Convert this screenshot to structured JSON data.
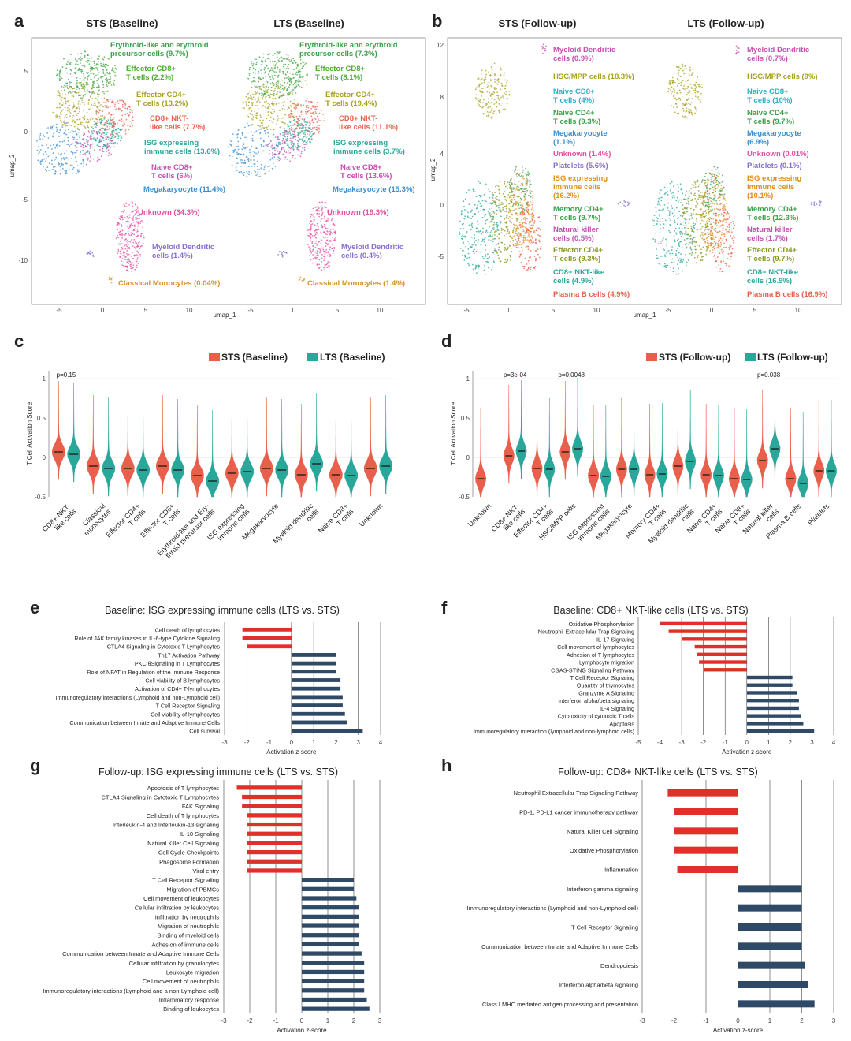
{
  "colors": {
    "sts": "#e8604c",
    "lts": "#2aa79b",
    "neg": "#e0302a",
    "pos": "#2f4a66"
  },
  "panel_labels": [
    "a",
    "b",
    "c",
    "d",
    "e",
    "f",
    "g",
    "h"
  ],
  "umap_a": {
    "titles": [
      "STS (Baseline)",
      "LTS (Baseline)"
    ],
    "xlabel": "umap_1",
    "ylabel": "umap_2",
    "xticks": [
      "-5",
      "0",
      "5",
      "10",
      "-5",
      "0",
      "5",
      "10"
    ],
    "yticks": [
      "5",
      "0",
      "-5",
      "-10"
    ],
    "labels": [
      {
        "sts": "Erythroid-like and erythroid\nprecursor cells (9.7%)",
        "lts": "Erythroid-like and erythroid\nprecursor cells (7.3%)",
        "color": "#3aa24a"
      },
      {
        "sts": "Effector CD8+\nT cells (2.2%)",
        "lts": "Effector CD8+\nT cells (8.1%)",
        "color": "#4fae33"
      },
      {
        "sts": "Effector CD4+\nT cells (13.2%)",
        "lts": "Effector CD4+\nT cells (19.4%)",
        "color": "#a8a220"
      },
      {
        "sts": "CD8+ NKT-\nlike cells (7.7%)",
        "lts": "CD8+ NKT-\nlike cells (11.1%)",
        "color": "#e8604c"
      },
      {
        "sts": "ISG expressing\nimmune cells (13.6%)",
        "lts": "ISG expressing\nimmune cells (3.7%)",
        "color": "#2aa79b"
      },
      {
        "sts": "Naive CD8+\nT cells (6%)",
        "lts": "Naive CD8+\nT cells (13.6%)",
        "color": "#c64fb0"
      },
      {
        "sts": "Megakaryocyte (11.4%)",
        "lts": "Megakaryocyte (15.3%)",
        "color": "#3b8fd0"
      },
      {
        "sts": "Unknown (34.3%)",
        "lts": "Unknown (19.3%)",
        "color": "#e84ea0"
      },
      {
        "sts": "Myeloid Dendritic\ncells (1.4%)",
        "lts": "Myeloid Dendritic\ncells (0.4%)",
        "color": "#8a6fd0"
      },
      {
        "sts": "Classical Monocytes (0.04%)",
        "lts": "Classical Monocytes (1.4%)",
        "color": "#d89020"
      }
    ]
  },
  "umap_b": {
    "titles": [
      "STS (Follow-up)",
      "LTS (Follow-up)"
    ],
    "xlabel": "umap_1",
    "ylabel": "umap_2",
    "xticks": [
      "-5",
      "0",
      "5",
      "10",
      "-5",
      "0",
      "5",
      "10"
    ],
    "yticks": [
      "12",
      "8",
      "4",
      "0",
      "-5"
    ],
    "labels": [
      {
        "sts": "Myeloid Dendritic\ncells (0.9%)",
        "lts": "Myeloid Dendritic\ncells (0.7%)",
        "color": "#c64fb0"
      },
      {
        "sts": "HSC/MPP cells (18.3%)",
        "lts": "HSC/MPP cells (9%)",
        "color": "#a8a220"
      },
      {
        "sts": "Naive CD8+\nT cells (4%)",
        "lts": "Naive CD8+\nT cells (10%)",
        "color": "#2ab3c4"
      },
      {
        "sts": "Naive CD4+\nT cells (9.3%)",
        "lts": "Naive CD4+\nT cells (9.7%)",
        "color": "#3aa24a"
      },
      {
        "sts": "Megakaryocyte\n(1.1%)",
        "lts": "Megakaryocyte\n(6.9%)",
        "color": "#3b8fd0"
      },
      {
        "sts": "Unknown (1.4%)",
        "lts": "Unknown (0.01%)",
        "color": "#e84ea0"
      },
      {
        "sts": "Platelets (5.6%)",
        "lts": "Platelets (0.1%)",
        "color": "#8a6fd0"
      },
      {
        "sts": "ISG expressing\nimmune cells\n(16.2%)",
        "lts": "ISG expressing\nimmune cells\n(10.1%)",
        "color": "#e0901a"
      },
      {
        "sts": "Memory CD4+\nT cells (9.7%)",
        "lts": "Memory CD4+\nT cells (12.3%)",
        "color": "#3aa24a"
      },
      {
        "sts": "Natural killer\ncells (0.5%)",
        "lts": "Natural killer\ncells (1.7%)",
        "color": "#c64fb0"
      },
      {
        "sts": "Effector CD4+\nT cells (9.3%)",
        "lts": "Effector CD4+\nT cells (9.7%)",
        "color": "#8a9a20"
      },
      {
        "sts": "CD8+ NKT-like\ncells (4.9%)",
        "lts": "CD8+ NKT-like\ncells (16.9%)",
        "color": "#2aa79b"
      },
      {
        "sts": "Plasma B cells (4.9%)",
        "lts": "Plasma B cells (16.9%)",
        "color": "#e8604c"
      }
    ]
  },
  "chart_data": [
    {
      "type": "violin",
      "panel": "c",
      "legend": [
        "STS (Baseline)",
        "LTS (Baseline)"
      ],
      "ylabel": "T Cell Activation Score",
      "ylim": [
        -0.5,
        1.1
      ],
      "yticks": [
        "-0.5",
        "0",
        "0.5",
        "1"
      ],
      "categories": [
        "CD8+ NKT-\nlike cells",
        "Classical\nmonocytes",
        "Effector CD4+\nT cells",
        "Effector CD8+\nT cells",
        "Erythroid-like and Ery-\nthroid precursor cells",
        "ISG expressing\nimmune cells",
        "Megakaryocyte",
        "Myeloid dendritic\ncells",
        "Naive CD8+\nT cells",
        "Unknown"
      ],
      "median_sts": [
        0.07,
        -0.11,
        -0.14,
        -0.11,
        -0.23,
        -0.2,
        -0.14,
        -0.22,
        -0.22,
        -0.14
      ],
      "median_lts": [
        0.04,
        -0.14,
        -0.16,
        -0.16,
        -0.3,
        -0.18,
        -0.16,
        -0.08,
        -0.23,
        -0.11
      ],
      "annotations": [
        {
          "category": 0,
          "text": "p=0.15"
        }
      ]
    },
    {
      "type": "violin",
      "panel": "d",
      "legend": [
        "STS (Follow-up)",
        "LTS (Follow-up)"
      ],
      "ylabel": "T Cell Activation Score",
      "ylim": [
        -0.5,
        1.1
      ],
      "yticks": [
        "-0.5",
        "0",
        "0.5",
        "1"
      ],
      "categories": [
        "Unknown",
        "CD8+ NKT-\nlike cells",
        "Effector CD4+\nT cells",
        "HSC/MPP cells",
        "ISG expressing\nimmune cells",
        "Megakaryocyte",
        "Memory CD4+\nT cells",
        "Myeloid dendritic\ncells",
        "Naive CD4+\nT cells",
        "Naive CD8+\nT cells",
        "Natural killer\ncells",
        "Plasma B cells",
        "Platelets"
      ],
      "median_sts": [
        -0.27,
        0.02,
        -0.14,
        0.07,
        -0.23,
        -0.15,
        -0.22,
        -0.11,
        -0.22,
        -0.27,
        -0.04,
        -0.27,
        -0.17
      ],
      "median_lts": [
        null,
        0.08,
        -0.15,
        0.11,
        -0.24,
        -0.15,
        -0.21,
        -0.05,
        -0.23,
        -0.28,
        0.11,
        -0.33,
        -0.17
      ],
      "annotations": [
        {
          "category": 1,
          "text": "p=3e-04"
        },
        {
          "category": 3,
          "text": "p=0.0048"
        },
        {
          "category": 10,
          "text": "p=0.038"
        }
      ]
    },
    {
      "type": "bar",
      "panel": "e",
      "title": "Baseline: ISG expressing immune cells (LTS vs. STS)",
      "xlabel": "Activation z-score",
      "xlim": [
        -3,
        4
      ],
      "categories": [
        "Cell death of lymphocytes",
        "Role of JAK family kinases in IL-6-type Cytokine Signaling",
        "CTLA4 Signaling in Cytotoxic T Lymphocytes",
        "Th17 Activation Pathway",
        "PKC θSignaling in T Lymphocytes",
        "Role of NFAT in Regulation of the Immune Response",
        "Cell viability of B lymphocytes",
        "Activation of CD4+ T-lymphocytes",
        "Immunoregulatory interactions (Lymphoid and non-Lymphoid cell)",
        "T Cell Receptor Signaling",
        "Cell viability of lymphocytes",
        "Communication between Innate and Adaptive Immune Cells",
        "Cell survival"
      ],
      "values": [
        -2.2,
        -2.2,
        -2.0,
        2.0,
        2.0,
        2.0,
        2.2,
        2.2,
        2.3,
        2.3,
        2.4,
        2.5,
        3.2
      ]
    },
    {
      "type": "bar",
      "panel": "f",
      "title": "Baseline: CD8+ NKT-like cells (LTS vs. STS)",
      "xlabel": "Activation z-score",
      "xlim": [
        -5,
        4
      ],
      "categories": [
        "Oxidative Phosphorylation",
        "Neutrophil Extracellular Trap Signaling",
        "IL-17 Signaling",
        "Cell movement of lymphocytes",
        "Adhesion of T lymphocytes",
        "Lymphocyte migration",
        "CGAS-STING Signaling Pathway",
        "T Cell Receptor Signaling",
        "Quantity of thymocytes",
        "Granzyme A Signaling",
        "Interferon alpha/beta signaling",
        "IL-4 Signaling",
        "Cytotoxicity of cytotoxic T cells",
        "Apoptosis",
        "Immunoregulatory interaction (lymphoid and non-lymphoid cells)"
      ],
      "values": [
        -4.0,
        -3.6,
        -3.0,
        -2.4,
        -2.3,
        -2.2,
        -2.0,
        2.1,
        2.1,
        2.3,
        2.4,
        2.4,
        2.5,
        2.6,
        3.1
      ]
    },
    {
      "type": "bar",
      "panel": "g",
      "title": "Follow-up: ISG expressing immune cells (LTS vs. STS)",
      "xlabel": "Activation z-score",
      "xlim": [
        -3,
        3
      ],
      "categories": [
        "Apoptosis of T lymphocytes",
        "CTLA4 Signaling in Cytotoxic T Lymphocytes",
        "FAK Signaling",
        "Cell death of T lymphocytes",
        "Interleukin-4 and Interleukin-13 signaling",
        "IL-10 Signaling",
        "Natural Killer Cell Signaling",
        "Cell Cycle Checkpoints",
        "Phagosome Formation",
        "Viral entry",
        "T Cell Receptor Signaling",
        "Migration of PBMCs",
        "Cell movement of leukocytes",
        "Cellular infiltration by leukocytes",
        "Infiltration by neutrophils",
        "Migration of neutrophils",
        "Binding of myeloid cells",
        "Adhesion of immune cells",
        "Communication between Innate and Adaptive Immune Cells",
        "Cellular infiltration by granulocytes",
        "Leukocyte migration",
        "Cell movement of neutrophils",
        "Immunoregulatory interactions (Lymphoid and a non-Lymphoid cell)",
        "Inflammatory response",
        "Binding of leukocytes"
      ],
      "values": [
        -2.5,
        -2.3,
        -2.3,
        -2.1,
        -2.1,
        -2.1,
        -2.1,
        -2.1,
        -2.1,
        -2.1,
        2.0,
        2.0,
        2.1,
        2.2,
        2.2,
        2.2,
        2.2,
        2.2,
        2.3,
        2.4,
        2.4,
        2.4,
        2.4,
        2.5,
        2.6
      ]
    },
    {
      "type": "bar",
      "panel": "h",
      "title": "Follow-up: CD8+ NKT-like cells (LTS vs. STS)",
      "xlabel": "Activation z-score",
      "xlim": [
        -3,
        3
      ],
      "categories": [
        "Neutrophil Extracellular Trap Signaling Pathway",
        "PD-1, PD-L1 cancer immunotherapy pathway",
        "Natural Killer Cell Signaling",
        "Oxidative Phosphorylation",
        "Inflammation",
        "Interferon gamma signaling",
        "Immunoregulatory interactions (Lymphoid and non-Lymphoid cell)",
        "T Cell Receptor Signaling",
        "Communication between Innate and Adaptive Immune Cells",
        "Dendropoiesis",
        "Interferon alpha/beta signaling",
        "Class I MHC mediated antigen processing and presentation"
      ],
      "values": [
        -2.2,
        -2.0,
        -2.0,
        -2.0,
        -1.9,
        2.0,
        2.0,
        2.0,
        2.0,
        2.1,
        2.2,
        2.4
      ]
    }
  ]
}
